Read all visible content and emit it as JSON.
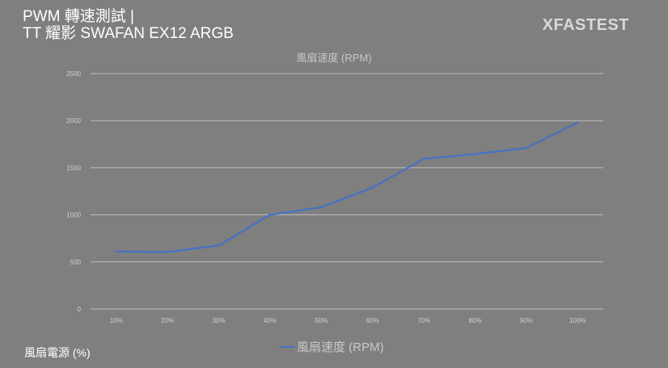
{
  "header": {
    "title_line1": "PWM 轉速測試 |",
    "title_line2": "TT 耀影 SWAFAN EX12 ARGB",
    "watermark": "XFASTEST"
  },
  "chart_data": {
    "type": "line",
    "title": "風扇速度 (RPM)",
    "xlabel": "風扇電源 (%)",
    "ylabel": "",
    "categories": [
      "10%",
      "20%",
      "30%",
      "40%",
      "50%",
      "60%",
      "70%",
      "80%",
      "90%",
      "100%"
    ],
    "series": [
      {
        "name": "風扇速度 (RPM)",
        "values": [
          610,
          605,
          675,
          1000,
          1080,
          1290,
          1595,
          1645,
          1710,
          1980
        ],
        "color": "#4472c4"
      }
    ],
    "ylim": [
      0,
      2500
    ],
    "yticks": [
      "0",
      "500",
      "1000",
      "1500",
      "2000",
      "2500"
    ],
    "grid": true,
    "legend_position": "bottom-center",
    "background": "#7f7f7f"
  }
}
